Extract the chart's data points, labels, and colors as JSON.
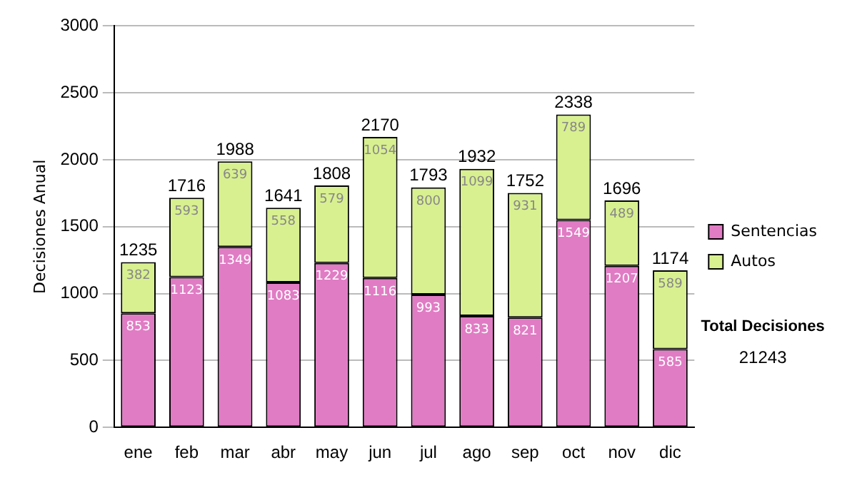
{
  "chart_data": {
    "type": "bar",
    "stacked": true,
    "ylabel": "Decisiones Anual",
    "categories": [
      "ene",
      "feb",
      "mar",
      "abr",
      "may",
      "jun",
      "jul",
      "ago",
      "sep",
      "oct",
      "nov",
      "dic"
    ],
    "series": [
      {
        "name": "Sentencias",
        "color": "#e07cc4",
        "values": [
          853,
          1123,
          1349,
          1083,
          1229,
          1116,
          993,
          833,
          821,
          1549,
          1207,
          585
        ]
      },
      {
        "name": "Autos",
        "color": "#d8f090",
        "values": [
          382,
          593,
          639,
          558,
          579,
          1054,
          800,
          1099,
          931,
          789,
          489,
          589
        ]
      }
    ],
    "totals": [
      "1235",
      "1716",
      "1988",
      "1641",
      "1808",
      "2170",
      "1793",
      "1932",
      "1752",
      "2338",
      "1696",
      "1174"
    ],
    "data_labels": true,
    "ylim": [
      0,
      3000
    ],
    "yticks": [
      0,
      500,
      1000,
      1500,
      2000,
      2500,
      3000
    ],
    "grid": "y",
    "legend": "right",
    "annotations": [
      "Total Decisiones",
      "21243"
    ]
  }
}
